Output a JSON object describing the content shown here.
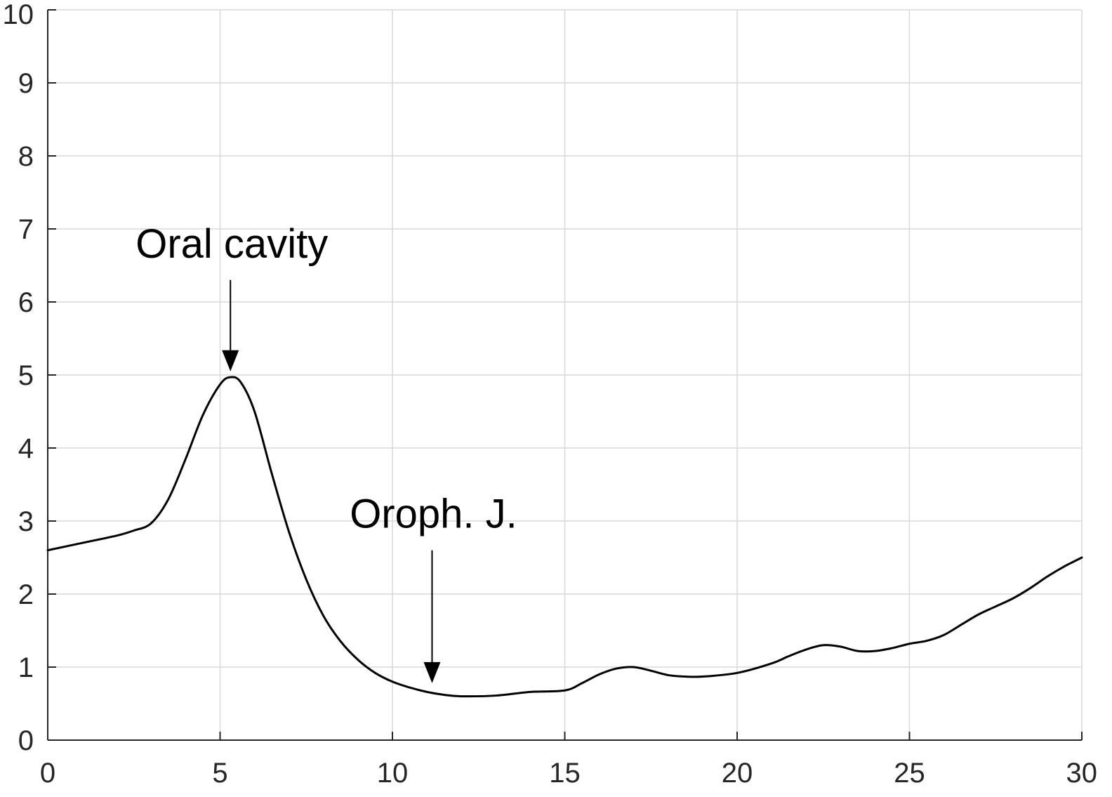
{
  "chart_data": {
    "type": "line",
    "title": "",
    "xlabel": "",
    "ylabel": "",
    "xlim": [
      0,
      30
    ],
    "ylim": [
      0,
      10
    ],
    "x_ticks": [
      "0",
      "5",
      "10",
      "15",
      "20",
      "25",
      "30"
    ],
    "y_ticks": [
      "0",
      "1",
      "2",
      "3",
      "4",
      "5",
      "6",
      "7",
      "8",
      "9",
      "10"
    ],
    "grid": true,
    "legend": "none",
    "colors": {
      "line": "#000000",
      "grid": "#d9d9d9",
      "axis": "#262626"
    },
    "series": [
      {
        "x": [
          0,
          1,
          2,
          2.5,
          3,
          3.5,
          4,
          4.5,
          5,
          5.3,
          5.6,
          6,
          6.5,
          7,
          7.5,
          8,
          8.5,
          9,
          9.5,
          10,
          10.5,
          11,
          11.5,
          12,
          13,
          14,
          15,
          15.5,
          16,
          16.5,
          17,
          17.5,
          18,
          18.5,
          19,
          20,
          21,
          21.5,
          22,
          22.5,
          23,
          23.5,
          24,
          24.5,
          25,
          25.5,
          26,
          26.5,
          27,
          27.5,
          28,
          28.5,
          29,
          29.5,
          30
        ],
        "y": [
          2.6,
          2.7,
          2.8,
          2.87,
          2.97,
          3.3,
          3.85,
          4.45,
          4.87,
          4.97,
          4.9,
          4.5,
          3.65,
          2.85,
          2.2,
          1.7,
          1.35,
          1.1,
          0.92,
          0.8,
          0.72,
          0.66,
          0.62,
          0.6,
          0.61,
          0.66,
          0.68,
          0.78,
          0.9,
          0.98,
          1.0,
          0.95,
          0.89,
          0.87,
          0.87,
          0.92,
          1.05,
          1.15,
          1.24,
          1.3,
          1.28,
          1.22,
          1.22,
          1.26,
          1.32,
          1.36,
          1.44,
          1.58,
          1.72,
          1.83,
          1.94,
          2.08,
          2.24,
          2.38,
          2.5
        ]
      }
    ],
    "annotations": [
      {
        "text": "Oral cavity",
        "x": 5.3,
        "arrow_from_y": 6.3,
        "arrow_to_y": 5.05
      },
      {
        "text": "Oroph. J.",
        "x": 11.15,
        "arrow_from_y": 2.6,
        "arrow_to_y": 0.78
      }
    ]
  }
}
